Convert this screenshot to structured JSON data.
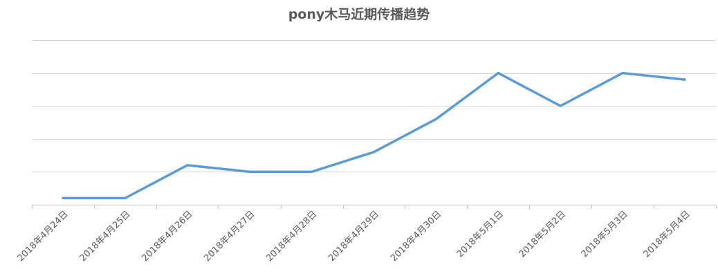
{
  "chart_data": {
    "type": "line",
    "title": "pony木马近期传播趋势",
    "categories": [
      "2018年4月24日",
      "2018年4月25日",
      "2018年4月26日",
      "2018年4月27日",
      "2018年4月28日",
      "2018年4月29日",
      "2018年4月30日",
      "2018年5月1日",
      "2018年5月2日",
      "2018年5月3日",
      "2018年5月4日"
    ],
    "series": [
      {
        "values": [
          0.2,
          0.2,
          1.2,
          1.0,
          1.0,
          1.6,
          2.6,
          4.0,
          3.0,
          4.0,
          3.8
        ],
        "color": "#5b9bd5"
      }
    ],
    "ylim": [
      0,
      5
    ],
    "y_gridlines": [
      0,
      1,
      2,
      3,
      4,
      5
    ],
    "y_tick_labels_shown": false,
    "grid": true,
    "legend": "none"
  }
}
